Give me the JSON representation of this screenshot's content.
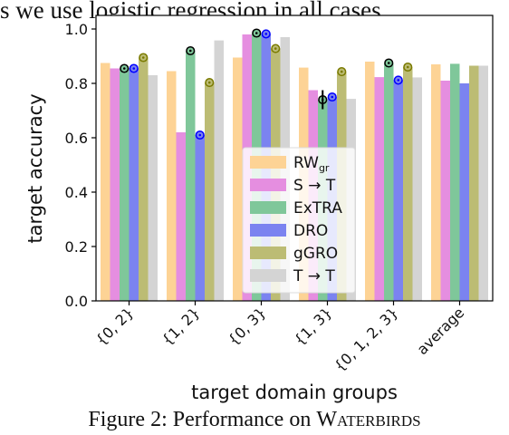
{
  "page": {
    "top_text": "s we use logistic regression in all cases.",
    "caption_prefix": "Figure 2: Performance on ",
    "caption_name": "Waterbirds"
  },
  "chart_data": {
    "type": "bar",
    "title": "",
    "xlabel": "target domain groups",
    "ylabel": "target accuracy",
    "ylim": [
      0,
      1.05
    ],
    "yticks": [
      "0.0",
      "0.2",
      "0.4",
      "0.6",
      "0.8",
      "1.0"
    ],
    "categories": [
      "{0, 2}",
      "{1, 2}",
      "{0, 3}",
      "{1, 3}",
      "{0, 1, 2, 3}",
      "average"
    ],
    "legend_position": "center",
    "series": [
      {
        "name": "RW",
        "name_sub": "gr",
        "color": "#fdd395",
        "values": [
          0.875,
          0.845,
          0.895,
          0.858,
          0.88,
          0.87
        ]
      },
      {
        "name": "S → T",
        "color": "#e58ee0",
        "values": [
          0.855,
          0.62,
          0.98,
          0.775,
          0.823,
          0.81
        ]
      },
      {
        "name": "ExTRA",
        "color": "#7fc79a",
        "values": [
          0.855,
          0.92,
          0.985,
          0.74,
          0.875,
          0.872
        ]
      },
      {
        "name": "DRO",
        "color": "#7b83f0",
        "values": [
          0.855,
          0.61,
          0.982,
          0.75,
          0.812,
          0.8
        ]
      },
      {
        "name": "gGRO",
        "color": "#bcbc74",
        "values": [
          0.895,
          0.803,
          0.928,
          0.843,
          0.86,
          0.865
        ]
      },
      {
        "name": "T → T",
        "color": "#d4d4d4",
        "values": [
          0.83,
          0.958,
          0.97,
          0.743,
          0.822,
          0.865
        ]
      }
    ],
    "markers": [
      {
        "series": "ExTRA",
        "marker_color": "#000000",
        "points": [
          [
            0,
            0.855
          ],
          [
            1,
            0.92
          ],
          [
            2,
            0.985
          ],
          [
            3,
            0.74
          ],
          [
            4,
            0.875
          ]
        ]
      },
      {
        "series": "DRO",
        "marker_color": "#0000ff",
        "points": [
          [
            0,
            0.855
          ],
          [
            1,
            0.61
          ],
          [
            2,
            0.982
          ],
          [
            3,
            0.75
          ],
          [
            4,
            0.812
          ]
        ]
      },
      {
        "series": "gGRO",
        "marker_color": "#7a7a00",
        "points": [
          [
            0,
            0.895
          ],
          [
            1,
            0.803
          ],
          [
            2,
            0.928
          ],
          [
            3,
            0.843
          ],
          [
            4,
            0.86
          ]
        ]
      }
    ],
    "error_bars": [
      {
        "series": "ExTRA",
        "category": 3,
        "low": 0.705,
        "high": 0.775
      }
    ]
  }
}
